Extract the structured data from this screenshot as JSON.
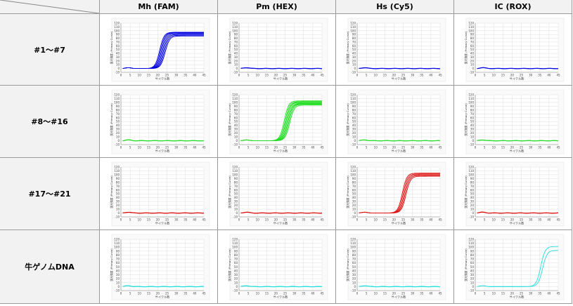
{
  "table": {
    "columns": [
      "Mh (FAM)",
      "Pm (HEX)",
      "Hs (Cy5)",
      "IC (ROX)"
    ],
    "rows": [
      "#1～#7",
      "#8～#16",
      "#17～#21",
      "牛ゲノムDNA"
    ]
  },
  "chart_data": {
    "type": "line",
    "xlabel": "サイクル数",
    "ylabel": "蛍光強度 (Primary Curve)",
    "x_ticks": [
      0,
      5,
      10,
      15,
      20,
      25,
      30,
      35,
      40,
      45
    ],
    "xlim": [
      0,
      45
    ],
    "y_ticks": [
      -10,
      0,
      10,
      20,
      30,
      40,
      50,
      60,
      70,
      80,
      90,
      100,
      110,
      120
    ],
    "ylim": [
      -10,
      120
    ],
    "grid": true,
    "panels": [
      {
        "row": "#1～#7",
        "column": "Mh (FAM)",
        "color": "#0000e0",
        "amplified": true,
        "num_curves": 7,
        "ct": [
          18.5,
          19,
          19.5,
          20,
          20.5,
          21,
          21.5
        ],
        "plateau": [
          96,
          95,
          94,
          92,
          90,
          88,
          86
        ],
        "baseline": 0
      },
      {
        "row": "#1～#7",
        "column": "Pm (HEX)",
        "color": "#0000e0",
        "amplified": false,
        "baseline": 0
      },
      {
        "row": "#1～#7",
        "column": "Hs (Cy5)",
        "color": "#0000e0",
        "amplified": false,
        "baseline": 0
      },
      {
        "row": "#1～#7",
        "column": "IC (ROX)",
        "color": "#0000e0",
        "amplified": false,
        "baseline": 0
      },
      {
        "row": "#8～#16",
        "column": "Mh (FAM)",
        "color": "#22dd22",
        "amplified": false,
        "baseline": 0
      },
      {
        "row": "#8～#16",
        "column": "Pm (HEX)",
        "color": "#22dd22",
        "amplified": true,
        "num_curves": 9,
        "ct": [
          22,
          22.5,
          23,
          23,
          23.5,
          24,
          24,
          24.5,
          25
        ],
        "plateau": [
          104,
          102,
          101,
          100,
          98,
          97,
          96,
          95,
          93
        ],
        "baseline": 0
      },
      {
        "row": "#8～#16",
        "column": "Hs (Cy5)",
        "color": "#22dd22",
        "amplified": false,
        "baseline": 0
      },
      {
        "row": "#8～#16",
        "column": "IC (ROX)",
        "color": "#22dd22",
        "amplified": false,
        "baseline": 0
      },
      {
        "row": "#17～#21",
        "column": "Mh (FAM)",
        "color": "#dd1111",
        "amplified": false,
        "baseline": 0
      },
      {
        "row": "#17～#21",
        "column": "Pm (HEX)",
        "color": "#dd1111",
        "amplified": false,
        "baseline": 0
      },
      {
        "row": "#17～#21",
        "column": "Hs (Cy5)",
        "color": "#dd1111",
        "amplified": true,
        "num_curves": 5,
        "ct": [
          22,
          22.5,
          23,
          23.5,
          24
        ],
        "plateau": [
          104,
          102,
          100,
          98,
          96
        ],
        "baseline": 0
      },
      {
        "row": "#17～#21",
        "column": "IC (ROX)",
        "color": "#dd1111",
        "amplified": false,
        "baseline": 0
      },
      {
        "row": "牛ゲノムDNA",
        "column": "Mh (FAM)",
        "color": "#22dddd",
        "amplified": false,
        "baseline": 0
      },
      {
        "row": "牛ゲノムDNA",
        "column": "Pm (HEX)",
        "color": "#22dddd",
        "amplified": false,
        "baseline": 0
      },
      {
        "row": "牛ゲノムDNA",
        "column": "Hs (Cy5)",
        "color": "#22dddd",
        "amplified": false,
        "baseline": 0
      },
      {
        "row": "牛ゲノムDNA",
        "column": "IC (ROX)",
        "color": "#22dddd",
        "amplified": true,
        "num_curves": 2,
        "ct": [
          33,
          34
        ],
        "plateau": [
          102,
          92
        ],
        "baseline": 0
      }
    ]
  }
}
